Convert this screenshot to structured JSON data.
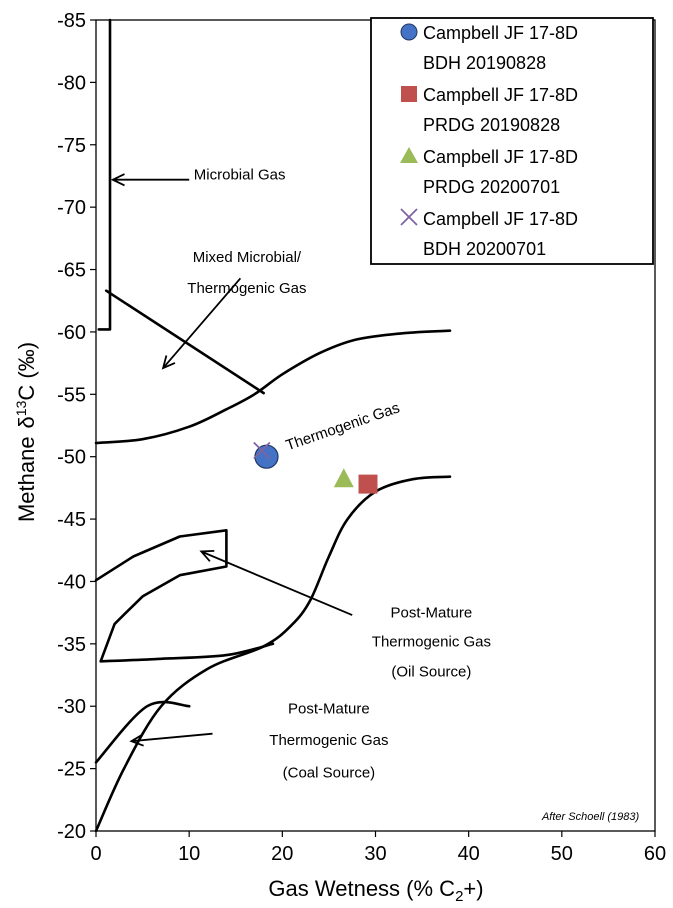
{
  "chart_data": {
    "type": "scatter",
    "title": "",
    "xlabel": "Gas Wetness (% C",
    "xlabel_sub": "2",
    "xlabel_suffix": "+)",
    "ylabel": "Methane",
    "ylabel_delta": "δ",
    "ylabel_sup": "13",
    "ylabel_suffix": "C (‰)",
    "xlim": [
      0,
      60
    ],
    "ylim": [
      -20,
      -85
    ],
    "x_ticks": [
      0,
      10,
      20,
      30,
      40,
      50,
      60
    ],
    "y_ticks": [
      -20,
      -25,
      -30,
      -35,
      -40,
      -45,
      -50,
      -55,
      -60,
      -65,
      -70,
      -75,
      -80,
      -85
    ],
    "grid": false,
    "legend_position": "top-right",
    "series": [
      {
        "name": "Campbell JF 17-8D BDH 20190828",
        "legend_line1": "Campbell JF 17-8D",
        "legend_line2": "BDH 20190828",
        "marker": "circle",
        "color": "#4472C4",
        "points": [
          {
            "x": 18.3,
            "y": -50.0
          }
        ]
      },
      {
        "name": "Campbell JF 17-8D PRDG 20190828",
        "legend_line1": "Campbell JF 17-8D",
        "legend_line2": "PRDG 20190828",
        "marker": "square",
        "color": "#C0504D",
        "points": [
          {
            "x": 29.2,
            "y": -47.8
          }
        ]
      },
      {
        "name": "Campbell JF 17-8D PRDG 20200701",
        "legend_line1": "Campbell JF 17-8D",
        "legend_line2": "PRDG 20200701",
        "marker": "triangle",
        "color": "#9BBB59",
        "points": [
          {
            "x": 26.6,
            "y": -48.2
          }
        ]
      },
      {
        "name": "Campbell JF 17-8D BDH 20200701",
        "legend_line1": "Campbell JF 17-8D",
        "legend_line2": "BDH 20200701",
        "marker": "x",
        "color": "#8064A2",
        "points": [
          {
            "x": 17.8,
            "y": -50.5
          }
        ]
      }
    ],
    "annotations": {
      "microbial": "Microbial Gas",
      "mixed_line1": "Mixed Microbial/",
      "mixed_line2": "Thermogenic Gas",
      "thermogenic": "Thermogenic Gas",
      "pm_oil_line1": "Post-Mature",
      "pm_oil_line2": "Thermogenic Gas",
      "pm_oil_line3": "(Oil Source)",
      "pm_coal_line1": "Post-Mature",
      "pm_coal_line2": "Thermogenic Gas",
      "pm_coal_line3": "(Coal Source)",
      "credit": "After Schoell (1983)"
    },
    "boundaries": [
      {
        "name": "microbial-zone-boundary",
        "points": [
          [
            1.5,
            -85
          ],
          [
            1.5,
            -60.2
          ],
          [
            0.3,
            -60.2
          ]
        ]
      },
      {
        "name": "mixed-zone-boundary",
        "points": [
          [
            1.1,
            -63.3
          ],
          [
            18,
            -55.1
          ]
        ]
      },
      {
        "name": "thermogenic-upper-boundary",
        "points": [
          [
            0,
            -51.1
          ],
          [
            5,
            -51.4
          ],
          [
            10,
            -52.4
          ],
          [
            14,
            -53.8
          ],
          [
            17,
            -55.0
          ],
          [
            20,
            -56.6
          ],
          [
            24,
            -58.3
          ],
          [
            28,
            -59.4
          ],
          [
            33,
            -59.9
          ],
          [
            38,
            -60.1
          ]
        ]
      },
      {
        "name": "thermogenic-lower-boundary",
        "points": [
          [
            0,
            -20
          ],
          [
            3,
            -25
          ],
          [
            7,
            -30
          ],
          [
            12,
            -33
          ],
          [
            18,
            -34.8
          ],
          [
            21,
            -36.5
          ],
          [
            23,
            -38.5
          ],
          [
            25,
            -42
          ],
          [
            27,
            -45
          ],
          [
            30,
            -47.2
          ],
          [
            34,
            -48.2
          ],
          [
            38,
            -48.4
          ]
        ]
      },
      {
        "name": "oil-source-boundary",
        "points": [
          [
            0.5,
            -33.6
          ],
          [
            7,
            -33.8
          ],
          [
            14,
            -34.1
          ],
          [
            19,
            -35.0
          ]
        ]
      },
      {
        "name": "oil-source-upper-edge",
        "points": [
          [
            0,
            -40.1
          ],
          [
            4,
            -42
          ],
          [
            9,
            -43.6
          ],
          [
            14,
            -44.1
          ],
          [
            14,
            -41.2
          ],
          [
            9,
            -40.5
          ],
          [
            5,
            -38.8
          ],
          [
            2,
            -36.6
          ],
          [
            0.5,
            -33.6
          ]
        ]
      },
      {
        "name": "coal-source-boundary",
        "points": [
          [
            0,
            -25.5
          ],
          [
            5.5,
            -30
          ],
          [
            10,
            -30
          ]
        ]
      }
    ],
    "arrows": [
      {
        "name": "microbial-arrow",
        "from": [
          10,
          -72.2
        ],
        "to": [
          1.8,
          -72.2
        ]
      },
      {
        "name": "mixed-arrow",
        "from": [
          15.5,
          -64.3
        ],
        "to": [
          7.2,
          -57.1
        ]
      },
      {
        "name": "oil-source-arrow",
        "from": [
          27.5,
          -37.3
        ],
        "to": [
          11.3,
          -42.4
        ]
      },
      {
        "name": "coal-source-arrow",
        "from": [
          12.5,
          -27.8
        ],
        "to": [
          3.8,
          -27.2
        ]
      }
    ],
    "label_anchors": {
      "microbial": [
        10.5,
        -72.2,
        0
      ],
      "mixed_line1": [
        16.2,
        -65.6,
        0
      ],
      "mixed_line2": [
        16.2,
        -63.1,
        0
      ],
      "thermogenic": [
        20.6,
        -50.5,
        -19
      ],
      "pm_oil_line1": [
        36,
        -37.1,
        0
      ],
      "pm_oil_line2": [
        36,
        -34.8,
        0
      ],
      "pm_oil_line3": [
        36,
        -32.4,
        0
      ],
      "pm_coal_line1": [
        25,
        -29.4,
        0
      ],
      "pm_coal_line2": [
        25,
        -26.9,
        0
      ],
      "pm_coal_line3": [
        25,
        -24.3,
        0
      ],
      "credit": [
        58.3,
        -20.9,
        0
      ]
    }
  }
}
